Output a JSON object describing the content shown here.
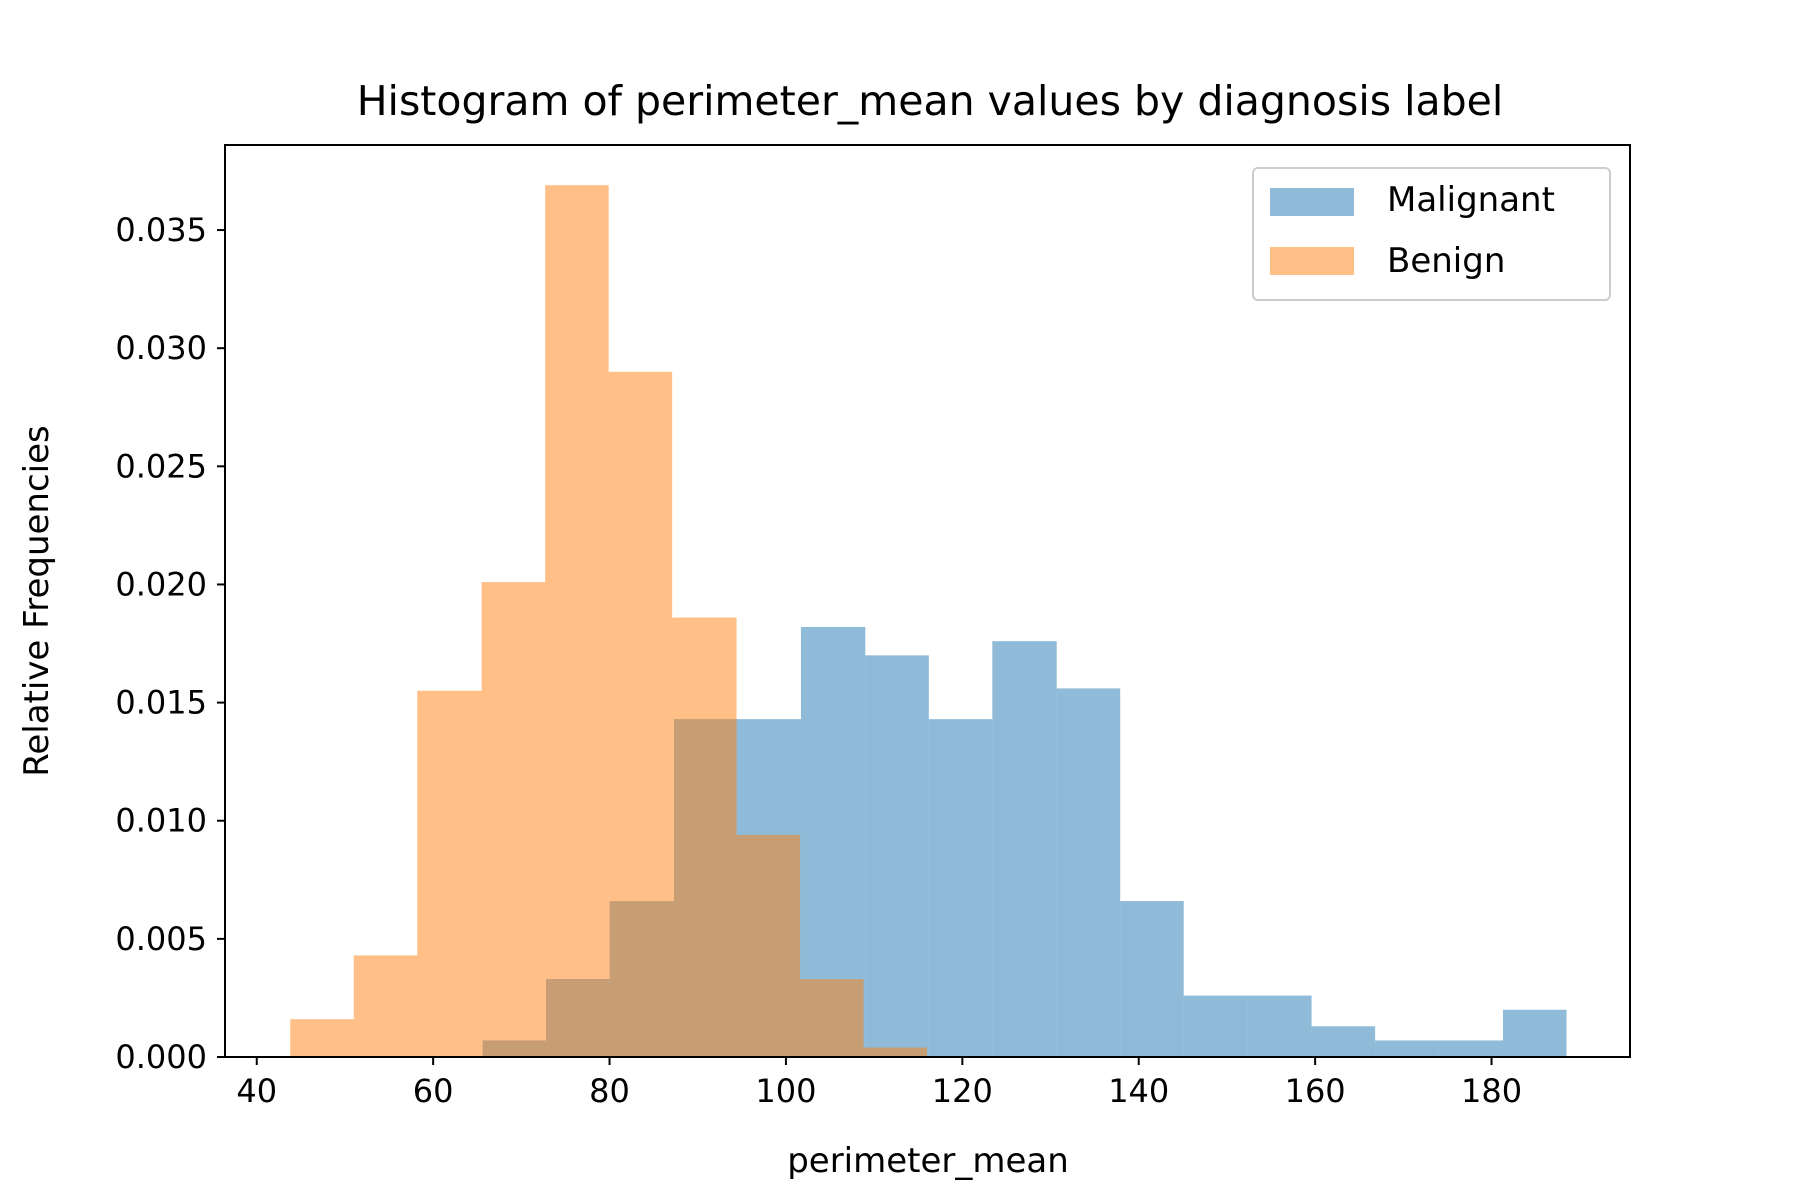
{
  "chart_data": {
    "type": "bar",
    "title": "Histogram of perimeter_mean values by diagnosis label",
    "xlabel": "perimeter_mean",
    "ylabel": "Relative Frequencies",
    "xlim": [
      36.4,
      195.7
    ],
    "ylim": [
      0,
      0.0386
    ],
    "x_ticks": [
      40,
      60,
      80,
      100,
      120,
      140,
      160,
      180
    ],
    "y_ticks": [
      0.0,
      0.005,
      0.01,
      0.015,
      0.02,
      0.025,
      0.03,
      0.035
    ],
    "y_tick_labels": [
      "0.000",
      "0.005",
      "0.010",
      "0.015",
      "0.020",
      "0.025",
      "0.030",
      "0.035"
    ],
    "grid": false,
    "legend_position": "top-right",
    "series": [
      {
        "name": "Malignant",
        "color": "#1f77b4",
        "opacity": 0.5,
        "bin_edges": [
          65.6,
          72.8,
          80.0,
          87.3,
          94.5,
          101.7,
          109.0,
          116.2,
          123.4,
          130.7,
          137.9,
          145.1,
          152.3,
          159.6,
          166.8,
          174.0,
          181.3,
          188.5
        ],
        "values": [
          0.0007,
          0.0033,
          0.0066,
          0.0143,
          0.0143,
          0.0182,
          0.017,
          0.0143,
          0.0176,
          0.0156,
          0.0066,
          0.0026,
          0.0026,
          0.0013,
          0.0007,
          0.0007,
          0.002
        ]
      },
      {
        "name": "Benign",
        "color": "#ff7f0e",
        "opacity": 0.5,
        "bin_edges": [
          43.8,
          51.0,
          58.2,
          65.5,
          72.7,
          79.9,
          87.1,
          94.4,
          101.6,
          108.8,
          116.0
        ],
        "values": [
          0.0016,
          0.0043,
          0.0155,
          0.0201,
          0.0369,
          0.029,
          0.0186,
          0.0094,
          0.0033,
          0.0004
        ]
      }
    ]
  }
}
